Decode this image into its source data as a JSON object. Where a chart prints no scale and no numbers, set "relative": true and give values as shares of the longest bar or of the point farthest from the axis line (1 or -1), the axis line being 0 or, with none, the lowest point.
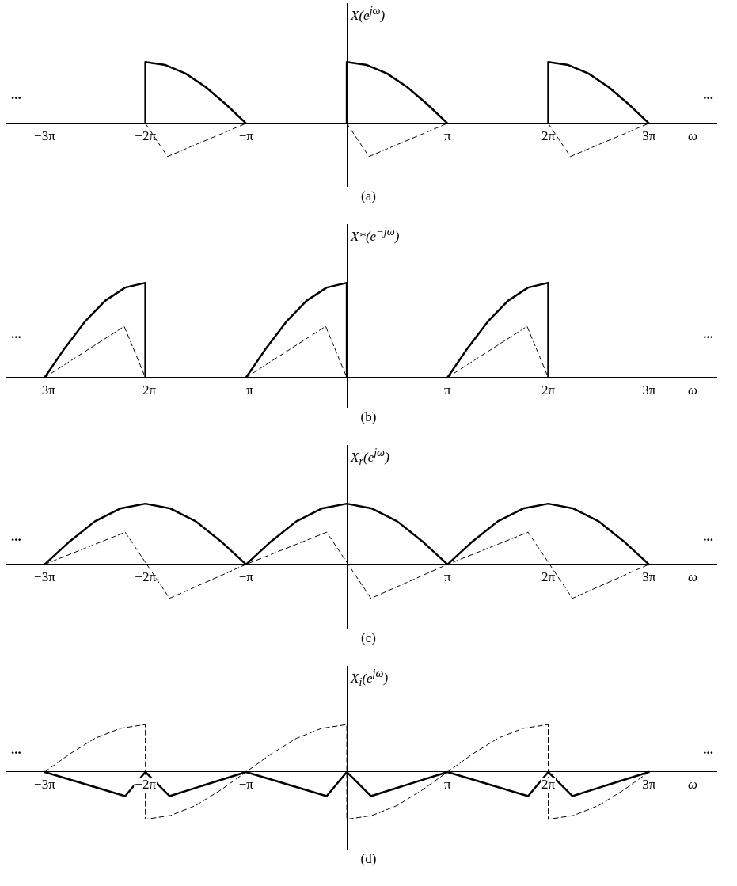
{
  "chart_data": [
    {
      "type": "line",
      "title": "(a)",
      "ylabel": "X(e$^{jω}$)",
      "xlabel": "ω",
      "relative": true,
      "xlim": [
        -10.62,
        11.53
      ],
      "xticks": [
        {
          "value": -9.4248,
          "label": "−3π"
        },
        {
          "value": -6.2832,
          "label": "−2π"
        },
        {
          "value": -3.1416,
          "label": "−π"
        },
        {
          "value": 3.1416,
          "label": "π"
        },
        {
          "value": 6.2832,
          "label": "2π"
        },
        {
          "value": 9.4248,
          "label": "3π"
        }
      ],
      "annotations": [
        "...",
        "..."
      ],
      "series": [
        {
          "color": "#000000",
          "line_style": "solid",
          "x": [
            -6.2832,
            -6.2832,
            -5.6549,
            -5.0265,
            -4.3982,
            -3.7699,
            -3.1416
          ],
          "values": [
            0,
            1,
            0.95,
            0.81,
            0.59,
            0.31,
            0
          ]
        },
        {
          "color": "#000000",
          "line_style": "solid",
          "x": [
            0,
            0,
            0.6283,
            1.2566,
            1.885,
            2.5133,
            3.1416
          ],
          "values": [
            0,
            1,
            0.95,
            0.81,
            0.59,
            0.31,
            0
          ]
        },
        {
          "color": "#000000",
          "line_style": "solid",
          "x": [
            6.2832,
            6.2832,
            6.9115,
            7.5398,
            8.1681,
            8.7965,
            9.4248
          ],
          "values": [
            0,
            1,
            0.95,
            0.81,
            0.59,
            0.31,
            0
          ]
        },
        {
          "color": "#000000",
          "line_style": "dashed",
          "x": [
            -6.2832,
            -5.592,
            -3.1416
          ],
          "values": [
            0,
            -0.54,
            0
          ]
        },
        {
          "color": "#000000",
          "line_style": "dashed",
          "x": [
            0,
            0.6912,
            3.1416
          ],
          "values": [
            0,
            -0.54,
            0
          ]
        },
        {
          "color": "#000000",
          "line_style": "dashed",
          "x": [
            6.2832,
            6.9743,
            9.4248
          ],
          "values": [
            0,
            -0.54,
            0
          ]
        }
      ]
    },
    {
      "type": "line",
      "title": "(b)",
      "ylabel": "X*(e$^{−jω}$)",
      "xlabel": "ω",
      "relative": true,
      "xlim": [
        -10.62,
        11.53
      ],
      "xticks": [
        {
          "value": -9.4248,
          "label": "−3π"
        },
        {
          "value": -6.2832,
          "label": "−2π"
        },
        {
          "value": -3.1416,
          "label": "−π"
        },
        {
          "value": 3.1416,
          "label": "π"
        },
        {
          "value": 6.2832,
          "label": "2π"
        },
        {
          "value": 9.4248,
          "label": "3π"
        }
      ],
      "annotations": [
        "...",
        "..."
      ],
      "series": [
        {
          "color": "#000000",
          "line_style": "solid",
          "x": [
            -9.4248,
            -8.7965,
            -8.1681,
            -7.5398,
            -6.9115,
            -6.2832,
            -6.2832
          ],
          "values": [
            0,
            0.31,
            0.59,
            0.81,
            0.95,
            1,
            0
          ]
        },
        {
          "color": "#000000",
          "line_style": "solid",
          "x": [
            -3.1416,
            -2.5133,
            -1.885,
            -1.2566,
            -0.6283,
            0,
            0
          ],
          "values": [
            0,
            0.31,
            0.59,
            0.81,
            0.95,
            1,
            0
          ]
        },
        {
          "color": "#000000",
          "line_style": "solid",
          "x": [
            3.1416,
            3.7699,
            4.3982,
            5.0265,
            5.6549,
            6.2832,
            6.2832
          ],
          "values": [
            0,
            0.31,
            0.59,
            0.81,
            0.95,
            1,
            0
          ]
        },
        {
          "color": "#000000",
          "line_style": "dashed",
          "x": [
            -9.4248,
            -6.9429,
            -6.2832
          ],
          "values": [
            0,
            0.54,
            0
          ]
        },
        {
          "color": "#000000",
          "line_style": "dashed",
          "x": [
            -3.1416,
            -0.6597,
            0
          ],
          "values": [
            0,
            0.54,
            0
          ]
        },
        {
          "color": "#000000",
          "line_style": "dashed",
          "x": [
            3.1416,
            5.6235,
            6.2832
          ],
          "values": [
            0,
            0.54,
            0
          ]
        }
      ]
    },
    {
      "type": "line",
      "title": "(c)",
      "ylabel": "X$_{r}$(e$^{jω}$)",
      "xlabel": "ω",
      "relative": true,
      "xlim": [
        -10.62,
        11.53
      ],
      "xticks": [
        {
          "value": -9.4248,
          "label": "−3π"
        },
        {
          "value": -6.2832,
          "label": "−2π"
        },
        {
          "value": -3.1416,
          "label": "−π"
        },
        {
          "value": 3.1416,
          "label": "π"
        },
        {
          "value": 6.2832,
          "label": "2π"
        },
        {
          "value": 9.4248,
          "label": "3π"
        }
      ],
      "annotations": [
        "...",
        "..."
      ],
      "series": [
        {
          "color": "#000000",
          "line_style": "solid",
          "x": [
            -9.4248,
            -8.6394,
            -7.854,
            -7.0686,
            -6.2832,
            -5.4978,
            -4.7124,
            -3.927,
            -3.1416,
            -2.3562,
            -1.5708,
            -0.7854,
            0,
            0.7854,
            1.5708,
            2.3562,
            3.1416,
            3.927,
            4.7124,
            5.4978,
            6.2832,
            7.0686,
            7.854,
            8.6394,
            9.4248
          ],
          "values": [
            0,
            0.38,
            0.71,
            0.92,
            1,
            0.92,
            0.71,
            0.38,
            0,
            0.38,
            0.71,
            0.92,
            1,
            0.92,
            0.71,
            0.38,
            0,
            0.38,
            0.71,
            0.92,
            1,
            0.92,
            0.71,
            0.38,
            0
          ]
        },
        {
          "color": "#000000",
          "line_style": "dashed",
          "x": [
            -9.4248,
            -6.9115,
            -5.5292,
            -3.1416,
            -0.6283,
            0.754,
            3.1416,
            5.6549,
            7.0372,
            9.4248
          ],
          "values": [
            0,
            0.53,
            -0.56,
            0,
            0.53,
            -0.56,
            0,
            0.53,
            -0.56,
            0
          ]
        }
      ]
    },
    {
      "type": "line",
      "title": "(d)",
      "ylabel": "X$_{i}$(e$^{jω}$)",
      "xlabel": "ω",
      "relative": true,
      "xlim": [
        -10.62,
        11.53
      ],
      "xticks": [
        {
          "value": -9.4248,
          "label": "−3π"
        },
        {
          "value": -6.2832,
          "label": "−2π"
        },
        {
          "value": -3.1416,
          "label": "−π"
        },
        {
          "value": 3.1416,
          "label": "π"
        },
        {
          "value": 6.2832,
          "label": "2π"
        },
        {
          "value": 9.4248,
          "label": "3π"
        }
      ],
      "annotations": [
        "...",
        "..."
      ],
      "series": [
        {
          "color": "#000000",
          "line_style": "dashed",
          "x": [
            -9.4248,
            -8.6394,
            -7.854,
            -7.0686,
            -6.2832,
            -6.2832,
            -5.4978,
            -4.7124,
            -3.927,
            -3.1416,
            -2.3562,
            -1.5708,
            -0.7854,
            0,
            0,
            0.7854,
            1.5708,
            2.3562,
            3.1416,
            3.927,
            4.7124,
            5.4978,
            6.2832,
            6.2832,
            7.0686,
            7.854,
            8.6394,
            9.4248
          ],
          "values": [
            0,
            0.38,
            0.71,
            0.92,
            1,
            -1,
            -0.92,
            -0.71,
            -0.38,
            0,
            0.38,
            0.71,
            0.92,
            1,
            -1,
            -0.92,
            -0.71,
            -0.38,
            0,
            0.38,
            0.71,
            0.92,
            1,
            -1,
            -0.92,
            -0.71,
            -0.38,
            0
          ]
        },
        {
          "color": "#000000",
          "line_style": "solid",
          "x": [
            -9.4248,
            -6.9115,
            -6.2832,
            -5.5292,
            -3.1416,
            -0.6283,
            0,
            0.754,
            3.1416,
            5.6549,
            6.2832,
            7.0372,
            9.4248
          ],
          "values": [
            0,
            -0.51,
            0,
            -0.51,
            0,
            -0.51,
            0,
            -0.51,
            0,
            -0.51,
            0,
            -0.51,
            0
          ]
        }
      ]
    }
  ]
}
